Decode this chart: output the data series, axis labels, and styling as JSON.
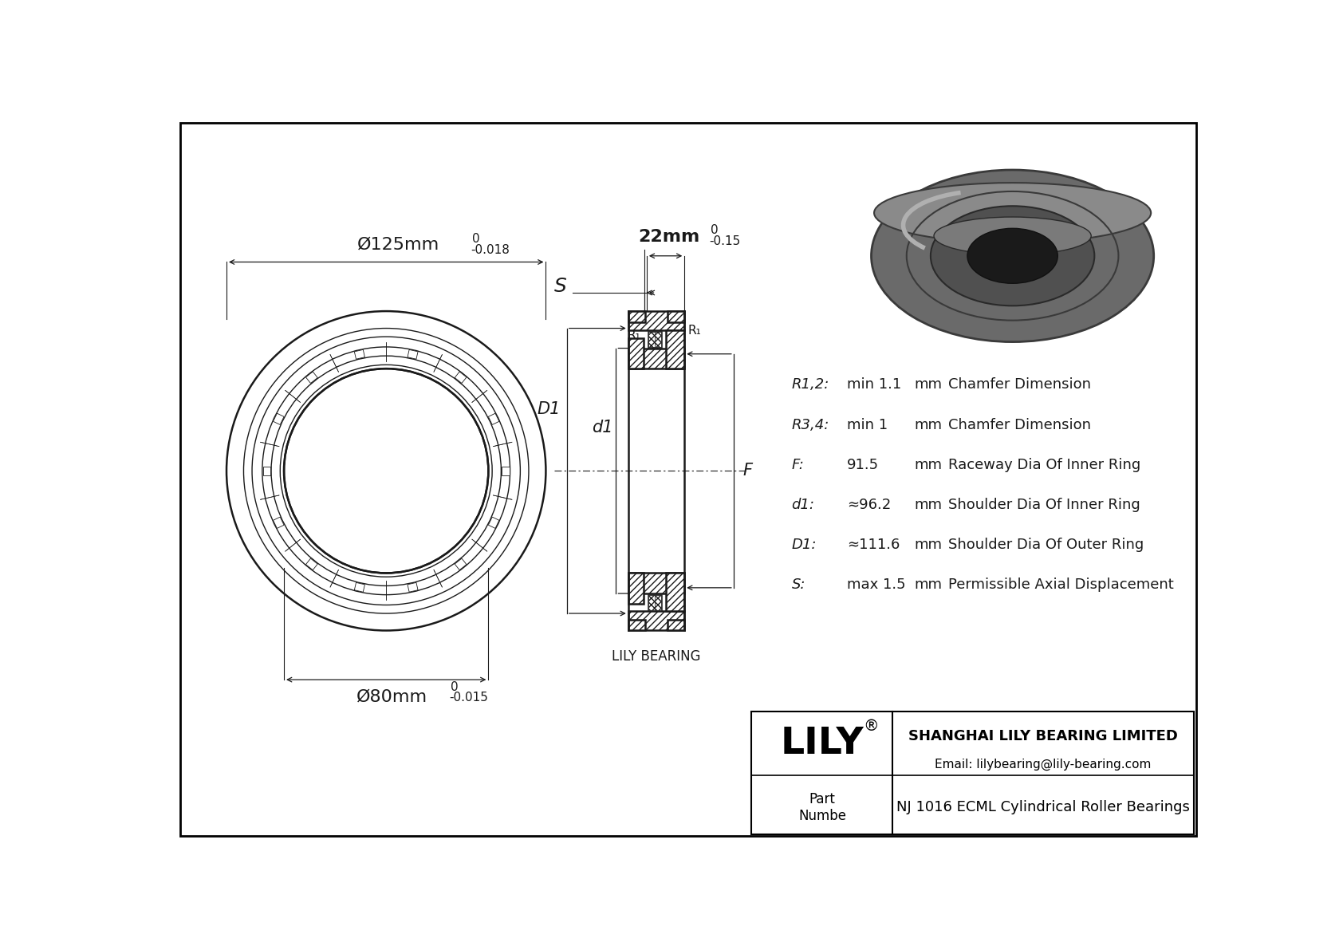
{
  "bg_color": "#ffffff",
  "col": "#1a1a1a",
  "dimensions": {
    "outer_diameter_label": "Ø125mm",
    "outer_diameter_tol_top": "0",
    "outer_diameter_tol": "-0.018",
    "inner_diameter_label": "Ø80mm",
    "inner_diameter_tol_top": "0",
    "inner_diameter_tol": "-0.015",
    "width_label": "22mm",
    "width_tol_top": "0",
    "width_tol": "-0.15"
  },
  "specs": [
    {
      "label": "R1,2:",
      "value": "min 1.1",
      "unit": "mm",
      "desc": "Chamfer Dimension"
    },
    {
      "label": "R3,4:",
      "value": "min 1",
      "unit": "mm",
      "desc": "Chamfer Dimension"
    },
    {
      "label": "F:",
      "value": "91.5",
      "unit": "mm",
      "desc": "Raceway Dia Of Inner Ring"
    },
    {
      "label": "d1:",
      "value": "≈96.2",
      "unit": "mm",
      "desc": "Shoulder Dia Of Inner Ring"
    },
    {
      "label": "D1:",
      "value": "≈111.6",
      "unit": "mm",
      "desc": "Shoulder Dia Of Outer Ring"
    },
    {
      "label": "S:",
      "value": "max 1.5",
      "unit": "mm",
      "desc": "Permissible Axial Displacement"
    }
  ],
  "lily_bearing_label": "LILY BEARING",
  "company": "SHANGHAI LILY BEARING LIMITED",
  "email": "Email: lilybearing@lily-bearing.com",
  "lily_text": "LILY",
  "part_label": "Part\nNumbe",
  "title": "NJ 1016 ECML Cylindrical Roller Bearings"
}
